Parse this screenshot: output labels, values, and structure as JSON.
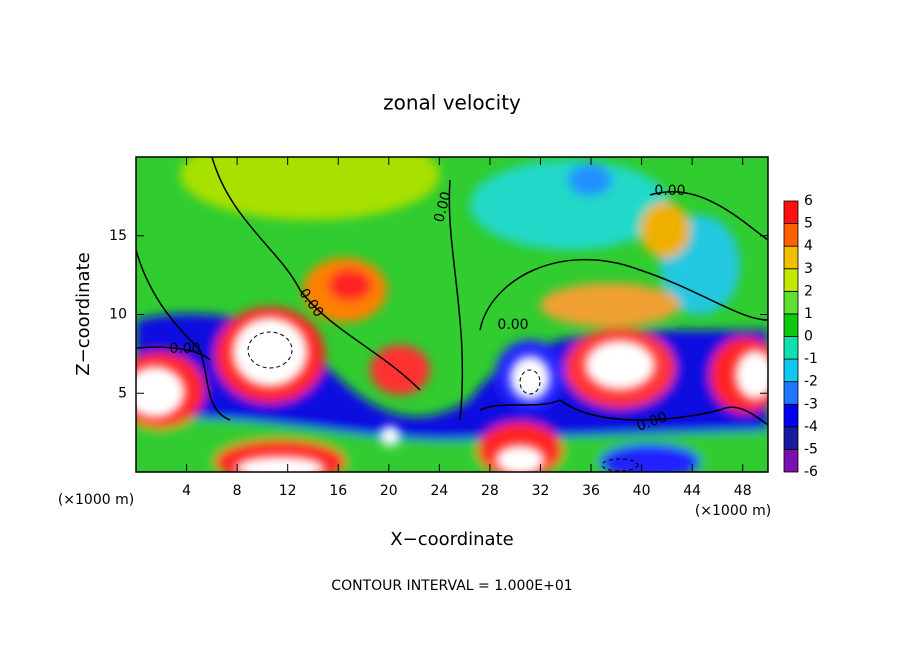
{
  "chart_data": {
    "type": "contour",
    "title": "zonal velocity",
    "x_label": "X−coordinate",
    "y_label": "Z−coordinate",
    "x_unit": "(×1000 m)",
    "y_unit": "(×1000 m)",
    "footer": "CONTOUR INTERVAL = 1.000E+01",
    "contour_label": "0.00",
    "xlim": [
      0,
      50
    ],
    "xticks": [
      4,
      8,
      12,
      16,
      20,
      24,
      28,
      32,
      36,
      40,
      44,
      48
    ],
    "ylim": [
      0,
      20
    ],
    "yticks": [
      5,
      10,
      15
    ],
    "colorbar": {
      "levels": [
        -6,
        -5,
        -4,
        -3,
        -2,
        -1,
        0,
        1,
        2,
        3,
        4,
        5,
        6
      ],
      "colors": [
        "#7a10b0",
        "#1a1aa0",
        "#0000f0",
        "#1e78ff",
        "#10c8f0",
        "#10e0b0",
        "#10c810",
        "#60e030",
        "#c0e800",
        "#f0c000",
        "#ff6000",
        "#ff1010"
      ]
    }
  }
}
